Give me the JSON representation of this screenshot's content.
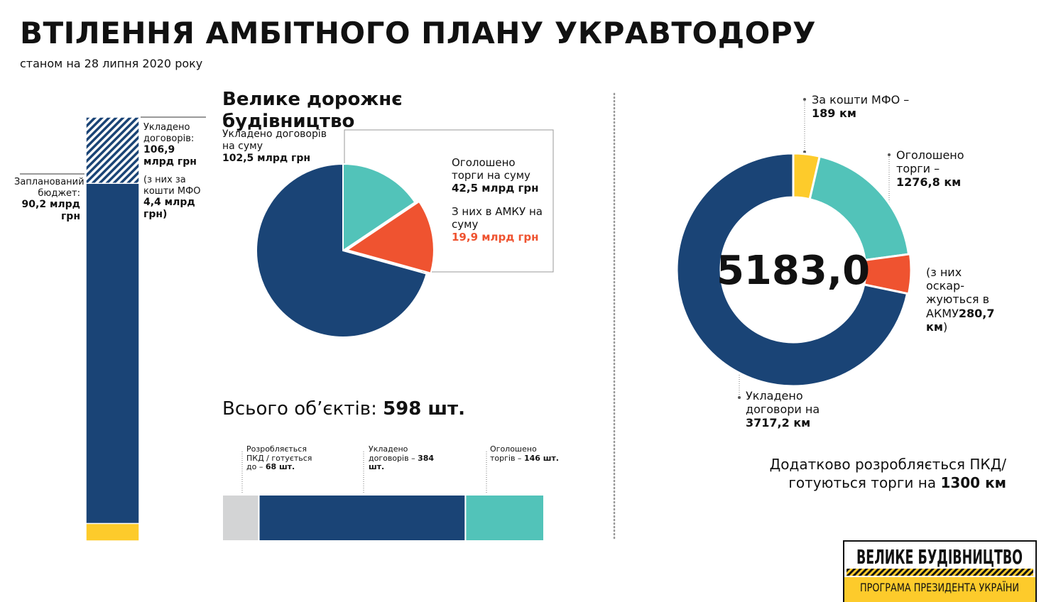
{
  "header": {
    "title": "ВТІЛЕННЯ АМБІТНОГО ПЛАНУ УКРАВТОДОРУ",
    "subtitle": "станом на 28 липня 2020 року"
  },
  "chart_data": [
    {
      "type": "overlay-bar",
      "series": [
        {
          "name": "Укладено договорів:",
          "values": [
            106.9
          ],
          "value_labels": [
            "106,9 млрд грн"
          ],
          "color": "#1a4476",
          "pattern": "hatch"
        },
        {
          "name": "Запланований бюджет:",
          "values": [
            90.2
          ],
          "value_labels": [
            "90,2 млрд грн"
          ],
          "color": "#1a4476"
        },
        {
          "name": "(з них за кошти МФО",
          "values": [
            4.4
          ],
          "value_labels": [
            "4,4 млрд грн)"
          ],
          "color": "#fdcb2b"
        }
      ]
    },
    {
      "type": "pie",
      "title": "Велике дорожнє будівництво",
      "categories": [
        "Оголошено торги на суму",
        "З них в АМКУ на суму",
        "Укладено договорів на суму"
      ],
      "values": [
        42.5,
        19.9,
        102.5
      ],
      "value_labels": [
        "42,5 млрд грн",
        "19,9 млрд грн",
        "102,5 млрд грн"
      ],
      "colors": [
        "#52c3b9",
        "#ef5330",
        "#1a4476"
      ],
      "part_of": [
        null,
        0,
        null
      ]
    },
    {
      "type": "stacked-hbar",
      "title": "Всього об’єктів:",
      "total": 598,
      "total_label": "598 шт.",
      "categories": [
        "Розробляється ПКД / готується до –",
        "Укладено договорів –",
        "Оголошено торгів –"
      ],
      "values": [
        68,
        384,
        146
      ],
      "value_labels": [
        "68 шт.",
        "384 шт.",
        "146 шт."
      ],
      "colors": [
        "#d3d4d5",
        "#1a4476",
        "#52c3b9"
      ]
    },
    {
      "type": "donut",
      "total": 5183.0,
      "total_label": "5183,0",
      "categories": [
        "За кошти МФО –",
        "Оголошено торги –",
        "(з них оскар-жуються в АКМУ",
        "Укладено договори на"
      ],
      "values": [
        189,
        1276.8,
        280.7,
        3717.2
      ],
      "value_labels": [
        "189 км",
        "1276,8 км",
        "280,7 км",
        "3717,2 км"
      ],
      "value_label_suffixes": [
        null,
        null,
        ")",
        null
      ],
      "colors": [
        "#fdcb2b",
        "#52c3b9",
        "#ef5330",
        "#1a4476"
      ],
      "part_of": [
        null,
        null,
        1,
        null
      ],
      "note": "Додатково розробляється ПКД/готуються торги на",
      "note_value": "1300 км"
    }
  ],
  "logo": {
    "title": "ВЕЛИКЕ БУДІВНИЦТВО",
    "subtitle": "ПРОГРАМА ПРЕЗИДЕНТА УКРАЇНИ"
  }
}
